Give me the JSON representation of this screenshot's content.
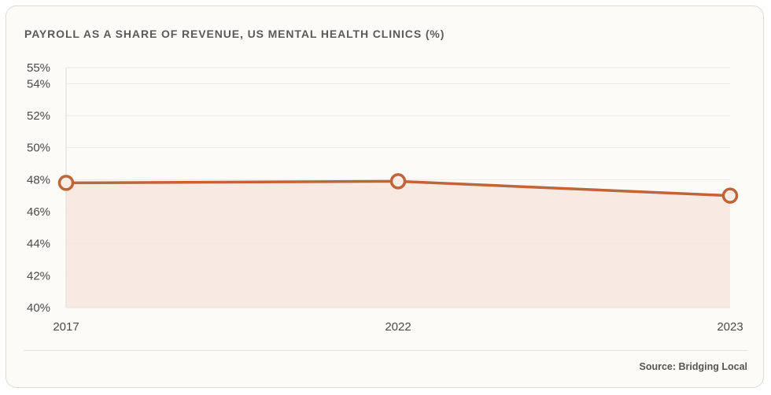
{
  "chart_data": {
    "type": "area",
    "title": "PAYROLL AS A SHARE OF REVENUE, US MENTAL HEALTH CLINICS (%)",
    "source": "Source: Bridging Local",
    "x": [
      "2017",
      "2022",
      "2023"
    ],
    "series": [
      {
        "values": [
          47.8,
          47.9,
          47.0
        ]
      }
    ],
    "yticks": [
      40,
      42,
      44,
      46,
      48,
      50,
      52,
      54,
      55
    ],
    "ytick_labels": [
      "40%",
      "42%",
      "44%",
      "46%",
      "48%",
      "50%",
      "52%",
      "54%",
      "55%"
    ],
    "ylim": [
      40,
      55
    ],
    "xlabel": "",
    "ylabel": "",
    "grid": true,
    "legend": "none",
    "colors": {
      "line": "#c0643a",
      "fill": "#f7e6df",
      "grid": "#ebeae4",
      "marker_fill": "#f9ede6"
    }
  }
}
